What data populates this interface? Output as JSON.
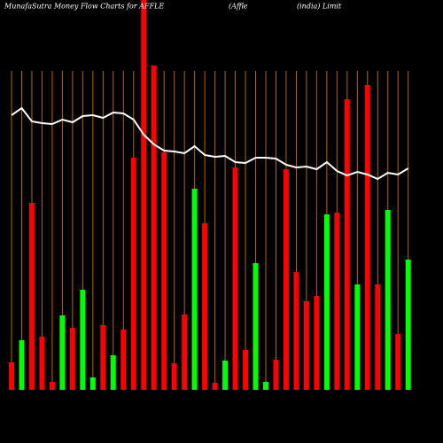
{
  "chart_data": {
    "type": "bar",
    "title": [
      "MunafaSutra  Money Flow  Charts for AFFLE",
      "(Affle",
      "(india) Limit"
    ],
    "values": [
      31,
      56,
      211,
      60,
      9,
      84,
      70,
      113,
      14,
      73,
      39,
      68,
      262,
      450,
      366,
      268,
      30,
      85,
      227,
      188,
      8,
      33,
      251,
      45,
      143,
      9,
      34,
      249,
      133,
      100,
      106,
      198,
      200,
      328,
      119,
      344,
      119,
      203,
      63,
      147
    ],
    "colors": [
      "#ff0000",
      "#00ff00",
      "#ff0000",
      "#ff0000",
      "#ff0000",
      "#00ff00",
      "#ff0000",
      "#00ff00",
      "#00ff00",
      "#ff0000",
      "#00ff00",
      "#ff0000",
      "#ff0000",
      "#ff0000",
      "#ff0000",
      "#ff0000",
      "#ff0000",
      "#ff0000",
      "#00ff00",
      "#ff0000",
      "#ff0000",
      "#00ff00",
      "#ff0000",
      "#ff0000",
      "#00ff00",
      "#00ff00",
      "#ff0000",
      "#ff0000",
      "#ff0000",
      "#ff0000",
      "#ff0000",
      "#00ff00",
      "#ff0000",
      "#ff0000",
      "#00ff00",
      "#ff0000",
      "#ff0000",
      "#00ff00",
      "#ff0000",
      "#00ff00"
    ],
    "line_values": [
      310,
      318,
      303,
      301,
      300,
      305,
      302,
      309,
      310,
      307,
      313,
      312,
      305,
      288,
      277,
      270,
      269,
      267,
      275,
      265,
      263,
      264,
      257,
      256,
      262,
      262,
      261,
      254,
      251,
      252,
      249,
      257,
      247,
      242,
      246,
      243,
      238,
      245,
      243,
      250
    ],
    "line_color": "#ffffff",
    "grid_color": "#b8660b"
  }
}
